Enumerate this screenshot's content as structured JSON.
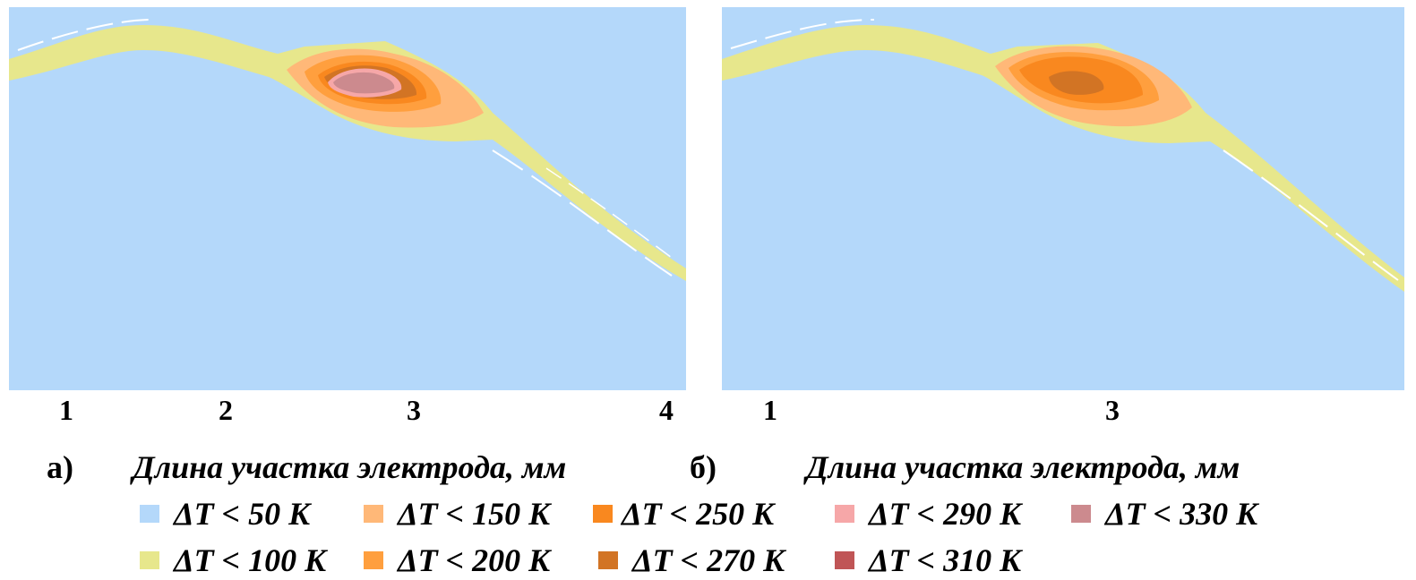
{
  "colors": {
    "background": "#b4d8fa",
    "lt50": "#b4d8fa",
    "lt100": "#e7e78c",
    "lt150": "#ffb878",
    "lt200": "#ff9f3e",
    "lt250": "#f9881f",
    "lt270": "#d27424",
    "lt290": "#f6a7a8",
    "lt310": "#c05556",
    "lt330": "#cc8a8e"
  },
  "panel_a": {
    "label": "а)",
    "axis_label": "Длина участка электрода, мм",
    "ticks": [
      "1",
      "2",
      "3",
      "4"
    ]
  },
  "panel_b": {
    "label": "б)",
    "axis_label": "Длина участка электрода, мм",
    "ticks": [
      "1",
      "3"
    ]
  },
  "legend": [
    {
      "text": "ΔT < 50 K",
      "color_key": "lt50"
    },
    {
      "text": "ΔT < 150 K",
      "color_key": "lt150"
    },
    {
      "text": "ΔT < 250 K",
      "color_key": "lt250"
    },
    {
      "text": "ΔT < 290 K",
      "color_key": "lt290"
    },
    {
      "text": "ΔT < 330 K",
      "color_key": "lt330"
    },
    {
      "text": "ΔT < 100 K",
      "color_key": "lt100"
    },
    {
      "text": "ΔT < 200 K",
      "color_key": "lt200"
    },
    {
      "text": "ΔT < 270 K",
      "color_key": "lt270"
    },
    {
      "text": "ΔT < 310 K",
      "color_key": "lt310"
    }
  ]
}
